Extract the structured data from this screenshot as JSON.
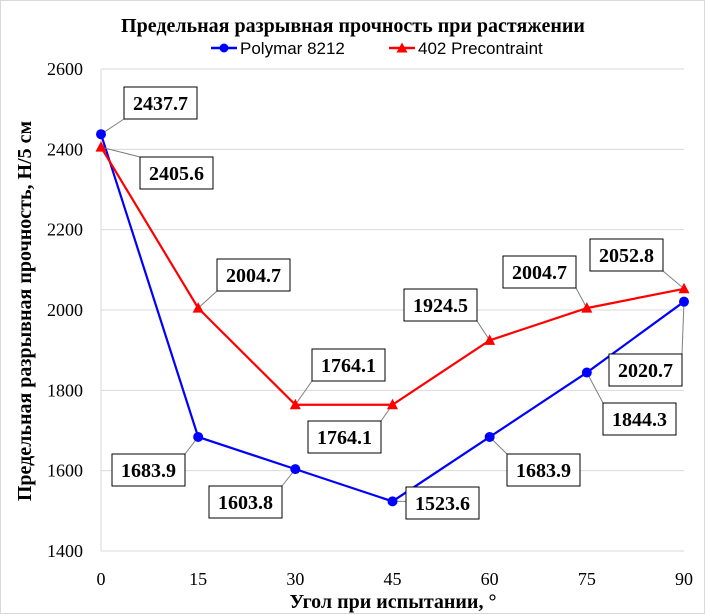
{
  "chart_data": {
    "type": "line",
    "title": "Предельная разрывная прочность при растяжении",
    "xlabel": "Угол при испытании, °",
    "ylabel": "Предельная разрывная прочность, Н/5 см",
    "x": [
      0,
      15,
      30,
      45,
      60,
      75,
      90
    ],
    "x_tick_labels": [
      "0",
      "15",
      "30",
      "45",
      "60",
      "75",
      "90"
    ],
    "xlim": [
      0,
      90
    ],
    "ylim": [
      1400,
      2600
    ],
    "y_tick_labels": [
      "1400",
      "1600",
      "1800",
      "2000",
      "2200",
      "2400",
      "2600"
    ],
    "grid": "horizontal",
    "legend_position": "top",
    "series": [
      {
        "name": "Polymar 8212",
        "color": "#0000ff",
        "marker": "circle",
        "values": [
          2437.7,
          1683.9,
          1603.8,
          1523.6,
          1683.9,
          1844.3,
          2020.7
        ],
        "labels": [
          "2437.7",
          "1683.9",
          "1603.8",
          "1523.6",
          "1683.9",
          "1844.3",
          "2020.7"
        ]
      },
      {
        "name": "402 Precontraint",
        "color": "#ff0000",
        "marker": "triangle",
        "values": [
          2405.6,
          2004.7,
          1764.1,
          1764.1,
          1924.5,
          2004.7,
          2052.8
        ],
        "labels": [
          "2405.6",
          "2004.7",
          "1764.1",
          "1764.1",
          "1924.5",
          "2004.7",
          "2052.8"
        ]
      }
    ]
  }
}
